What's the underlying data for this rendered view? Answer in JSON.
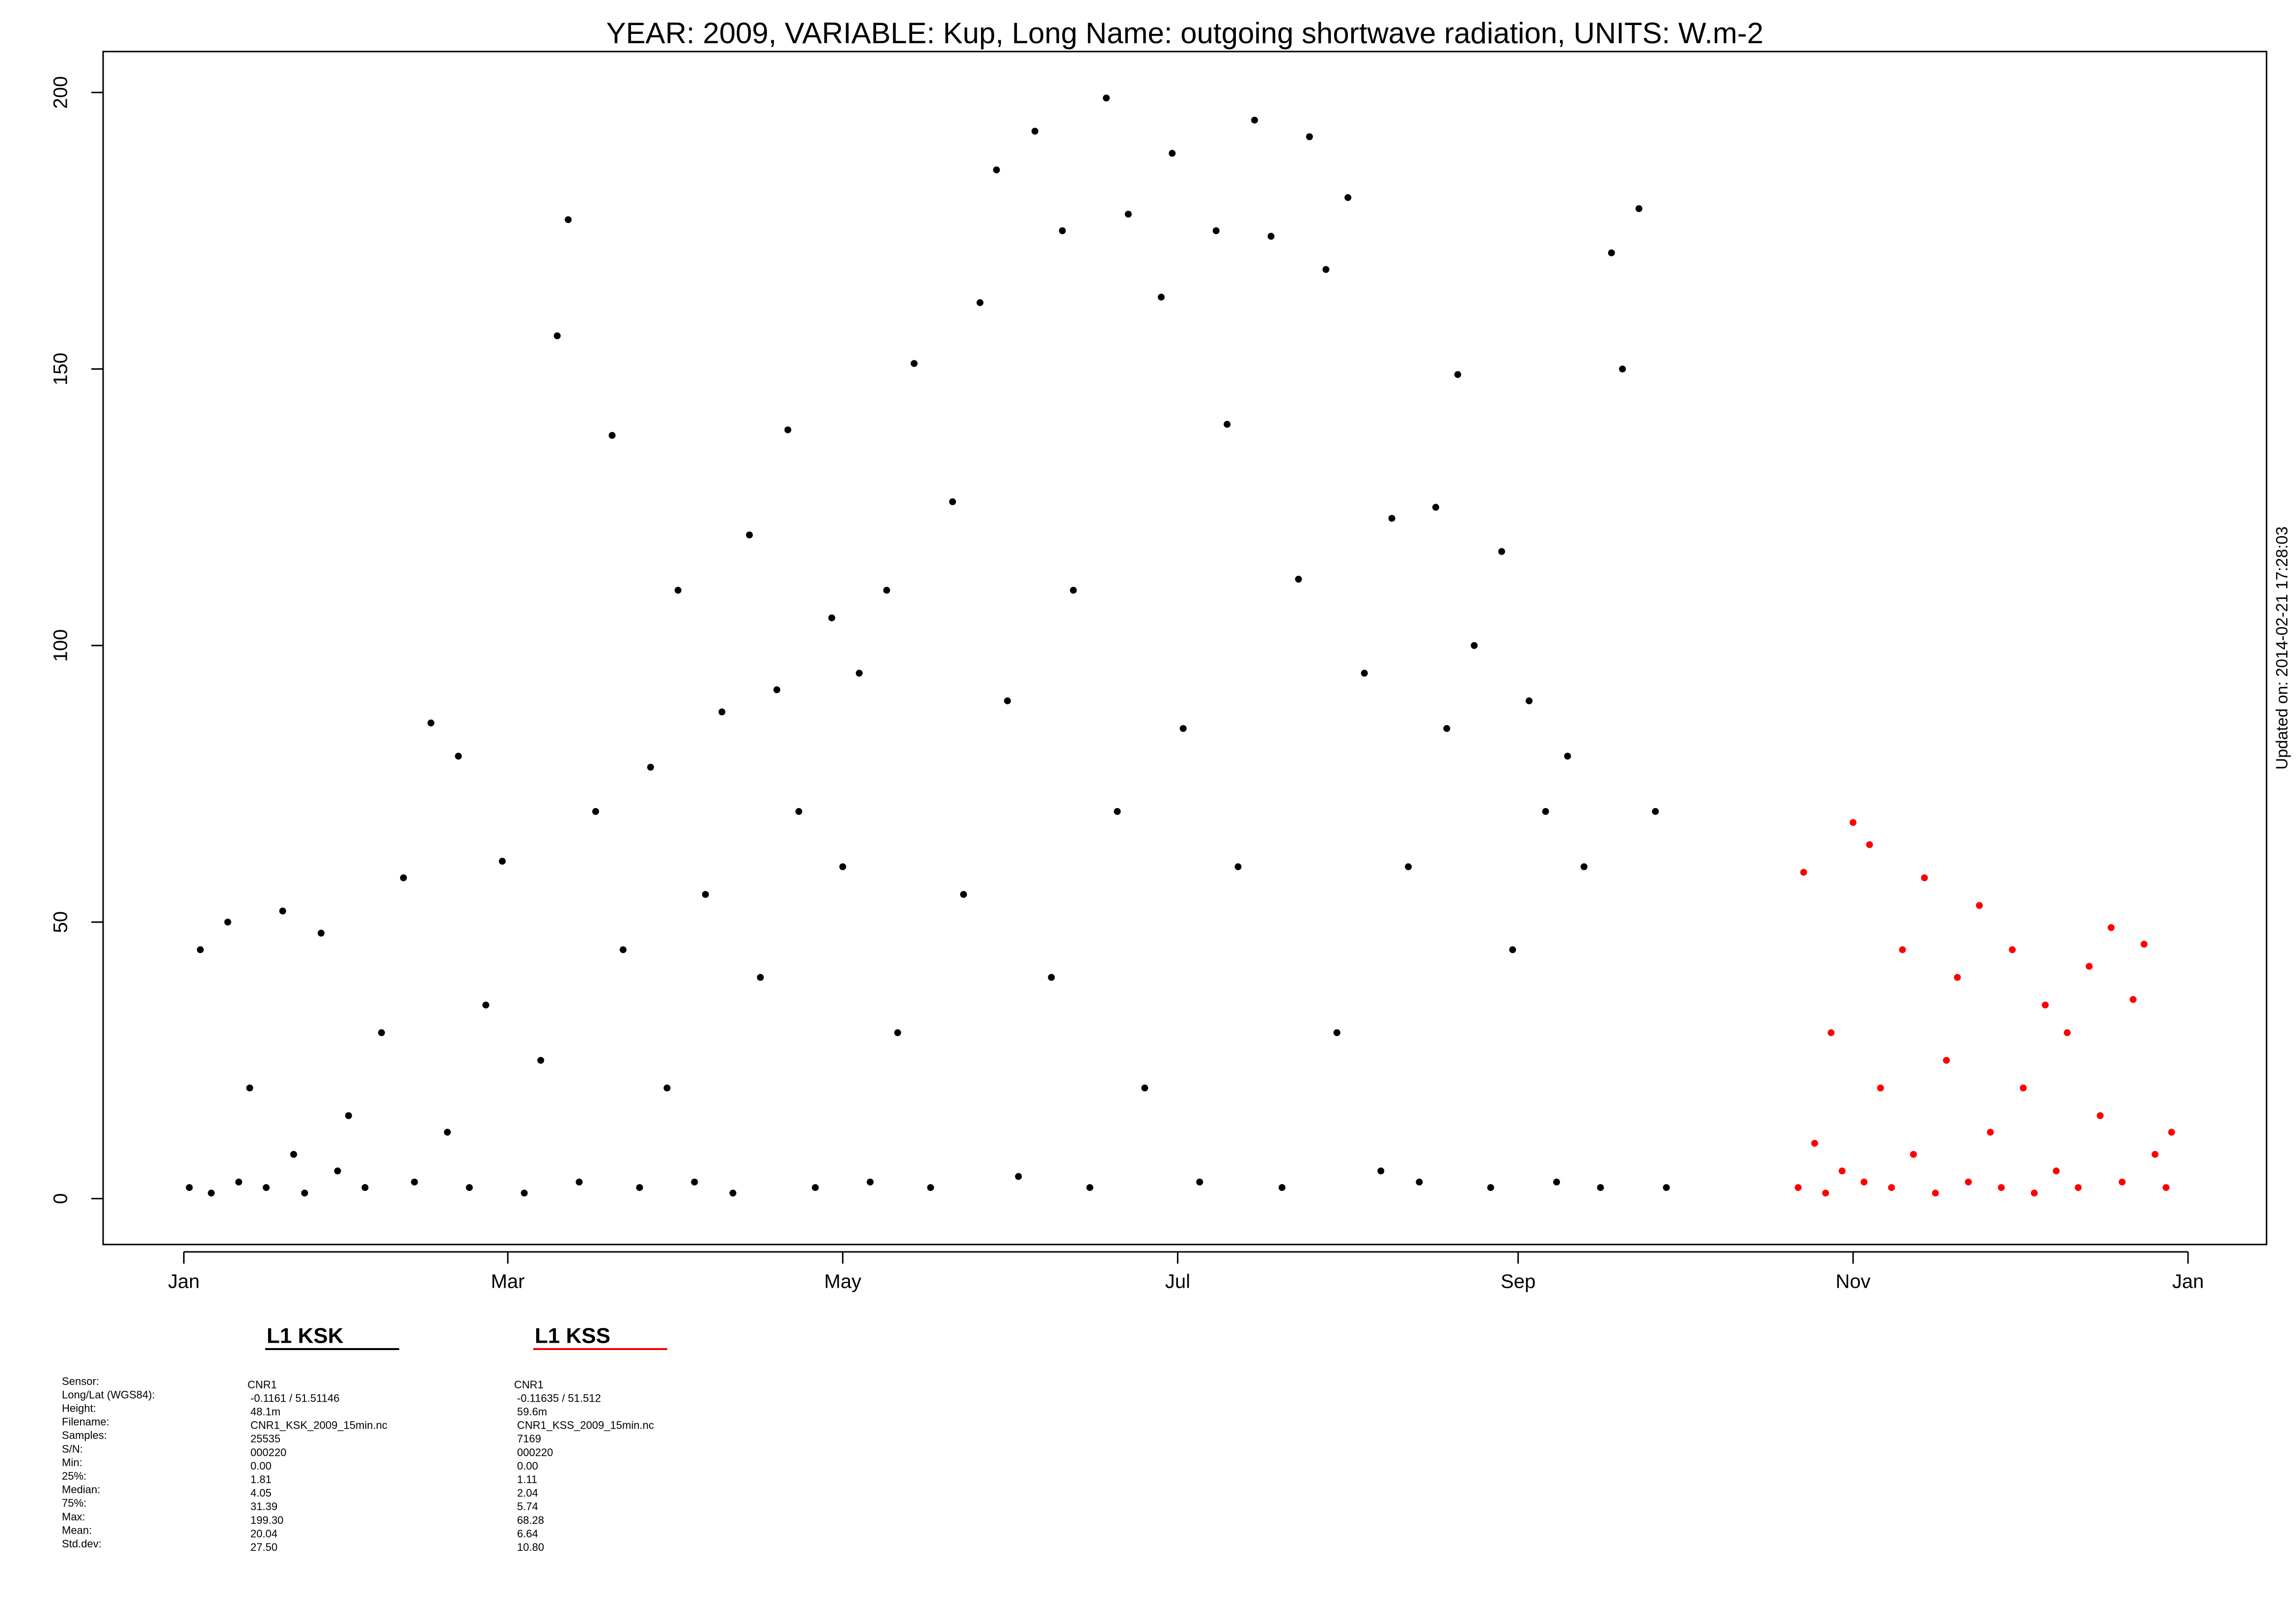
{
  "chart_data": {
    "type": "scatter",
    "title": "YEAR: 2009, VARIABLE: Kup, Long Name: outgoing  shortwave  radiation, UNITS: W.m-2",
    "annotation": "Updated on: 2014-02-21 17:28:03",
    "xlim": [
      -14.7,
      379.3
    ],
    "ylim": [
      -8.3,
      207.4
    ],
    "xticks": [
      {
        "value": 0,
        "label": "Jan"
      },
      {
        "value": 59,
        "label": "Mar"
      },
      {
        "value": 120,
        "label": "May"
      },
      {
        "value": 181,
        "label": "Jul"
      },
      {
        "value": 243,
        "label": "Sep"
      },
      {
        "value": 304,
        "label": "Nov"
      },
      {
        "value": 365,
        "label": "Jan"
      }
    ],
    "yticks": [
      0,
      50,
      100,
      150,
      200
    ],
    "grid": false,
    "series": [
      {
        "name": "L1 KSK",
        "color": "#000000",
        "x": [
          1,
          3,
          5,
          8,
          10,
          12,
          15,
          18,
          20,
          22,
          25,
          28,
          30,
          33,
          36,
          40,
          42,
          45,
          48,
          50,
          52,
          55,
          58,
          62,
          65,
          68,
          70,
          72,
          75,
          78,
          80,
          83,
          85,
          88,
          90,
          93,
          95,
          98,
          100,
          103,
          105,
          108,
          110,
          112,
          115,
          118,
          120,
          123,
          125,
          128,
          130,
          133,
          136,
          140,
          142,
          145,
          148,
          150,
          152,
          155,
          158,
          160,
          162,
          165,
          168,
          170,
          172,
          175,
          178,
          180,
          182,
          185,
          188,
          190,
          192,
          195,
          198,
          200,
          203,
          205,
          208,
          210,
          212,
          215,
          218,
          220,
          223,
          225,
          228,
          230,
          232,
          235,
          238,
          240,
          242,
          245,
          248,
          250,
          252,
          255,
          258,
          260,
          262,
          265,
          268,
          270
        ],
        "values": [
          2,
          45,
          1,
          50,
          3,
          20,
          2,
          52,
          8,
          1,
          48,
          5,
          15,
          2,
          30,
          58,
          3,
          86,
          12,
          80,
          2,
          35,
          61,
          1,
          25,
          156,
          177,
          3,
          70,
          138,
          45,
          2,
          78,
          20,
          110,
          3,
          55,
          88,
          1,
          120,
          40,
          92,
          139,
          70,
          2,
          105,
          60,
          95,
          3,
          110,
          30,
          151,
          2,
          126,
          55,
          162,
          186,
          90,
          4,
          193,
          40,
          175,
          110,
          2,
          199,
          70,
          178,
          20,
          163,
          189,
          85,
          3,
          175,
          140,
          60,
          195,
          174,
          2,
          112,
          192,
          168,
          30,
          181,
          95,
          5,
          123,
          60,
          3,
          125,
          85,
          149,
          100,
          2,
          117,
          45,
          90,
          70,
          3,
          80,
          60,
          2,
          171,
          150,
          179,
          70,
          2
        ]
      },
      {
        "name": "L1 KSS",
        "color": "#ff0000",
        "x": [
          294,
          295,
          297,
          299,
          300,
          302,
          304,
          306,
          307,
          309,
          311,
          313,
          315,
          317,
          319,
          321,
          323,
          325,
          327,
          329,
          331,
          333,
          335,
          337,
          339,
          341,
          343,
          345,
          347,
          349,
          351,
          353,
          355,
          357,
          359,
          361,
          362
        ],
        "values": [
          2,
          59,
          10,
          1,
          30,
          5,
          68,
          3,
          64,
          20,
          2,
          45,
          8,
          58,
          1,
          25,
          40,
          3,
          53,
          12,
          2,
          45,
          20,
          1,
          35,
          5,
          30,
          2,
          42,
          15,
          49,
          3,
          36,
          46,
          8,
          2,
          12
        ]
      }
    ],
    "stats": {
      "labels": [
        "Sensor:",
        "Long/Lat (WGS84):",
        "Height:",
        "Filename:",
        "Samples:",
        "S/N:",
        "Min:",
        "25%:",
        "Median:",
        "75%:",
        "Max:",
        "Mean:",
        "Std.dev:"
      ],
      "columns": [
        [
          "CNR1",
          "-0.1161 / 51.51146",
          "48.1m",
          "CNR1_KSK_2009_15min.nc",
          "25535",
          "000220",
          "0.00",
          "1.81",
          "4.05",
          "31.39",
          "199.30",
          "20.04",
          "27.50"
        ],
        [
          "CNR1",
          "-0.11635 / 51.512",
          "59.6m",
          "CNR1_KSS_2009_15min.nc",
          "7169",
          "000220",
          "0.00",
          "1.11",
          "2.04",
          "5.74",
          "68.28",
          "6.64",
          "10.80"
        ]
      ]
    }
  }
}
